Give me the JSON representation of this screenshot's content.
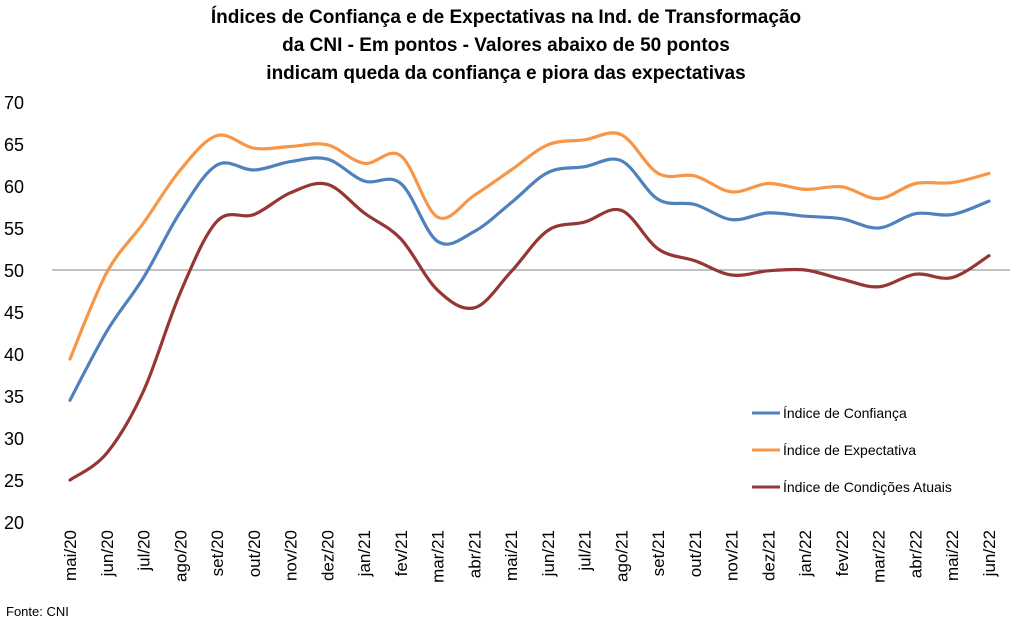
{
  "chart_data": {
    "type": "line",
    "title_lines": [
      "Índices de Confiança e de Expectativas na Ind. de Transformação",
      "da CNI - Em pontos - Valores abaixo de 50 pontos",
      "indicam queda da confiança e piora das expectativas"
    ],
    "categories": [
      "mai/20",
      "jun/20",
      "jul/20",
      "ago/20",
      "set/20",
      "out/20",
      "nov/20",
      "dez/20",
      "jan/21",
      "fev/21",
      "mar/21",
      "abr/21",
      "mai/21",
      "jun/21",
      "jul/21",
      "ago/21",
      "set/21",
      "out/21",
      "nov/21",
      "dez/21",
      "jan/22",
      "fev/22",
      "mar/22",
      "abr/22",
      "mai/22",
      "jun/22"
    ],
    "y_ticks": [
      20,
      25,
      30,
      35,
      40,
      45,
      50,
      55,
      60,
      65,
      70
    ],
    "ylim": [
      20,
      70
    ],
    "reference_line": 50,
    "series": [
      {
        "name": "Índice de Confiança",
        "color": "#4f81bd",
        "values": [
          34.5,
          42.7,
          49.1,
          56.9,
          62.5,
          61.9,
          62.9,
          63.2,
          60.6,
          60.3,
          53.4,
          54.6,
          58.0,
          61.6,
          62.3,
          63.0,
          58.4,
          57.8,
          56.0,
          56.8,
          56.4,
          56.1,
          55.0,
          56.7,
          56.6,
          58.2
        ]
      },
      {
        "name": "Índice de Expectativa",
        "color": "#f79646",
        "values": [
          39.4,
          49.7,
          55.6,
          61.9,
          66.0,
          64.5,
          64.7,
          64.9,
          62.7,
          63.6,
          56.3,
          58.9,
          61.9,
          64.9,
          65.5,
          66.1,
          61.5,
          61.2,
          59.3,
          60.3,
          59.6,
          59.9,
          58.5,
          60.3,
          60.4,
          61.5
        ]
      },
      {
        "name": "Índice de Condições Atuais",
        "color": "#953735",
        "values": [
          25.0,
          28.2,
          35.6,
          47.3,
          55.8,
          56.6,
          59.2,
          60.2,
          56.8,
          53.7,
          47.6,
          45.5,
          49.8,
          54.7,
          55.7,
          57.1,
          52.5,
          51.1,
          49.4,
          49.9,
          50.0,
          48.9,
          48.0,
          49.5,
          49.1,
          51.7
        ]
      }
    ],
    "legend_position": "right"
  },
  "source_text": "Fonte: CNI"
}
